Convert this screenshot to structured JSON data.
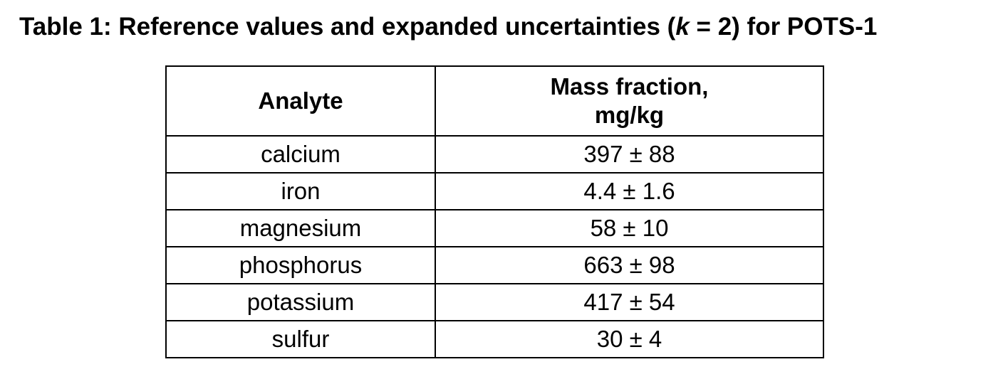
{
  "caption": {
    "prefix": "Table 1: Reference values and expanded uncertainties (",
    "variable": "k",
    "suffix": " = 2) for POTS-1"
  },
  "table": {
    "headers": {
      "analyte": "Analyte",
      "mass_fraction_line1": "Mass fraction,",
      "mass_fraction_line2": "mg/kg"
    },
    "rows": [
      {
        "analyte": "calcium",
        "value": "397 ± 88"
      },
      {
        "analyte": "iron",
        "value": "4.4 ± 1.6"
      },
      {
        "analyte": "magnesium",
        "value": "58 ± 10"
      },
      {
        "analyte": "phosphorus",
        "value": "663 ± 98"
      },
      {
        "analyte": "potassium",
        "value": "417 ± 54"
      },
      {
        "analyte": "sulfur",
        "value": "30 ± 4"
      }
    ]
  }
}
